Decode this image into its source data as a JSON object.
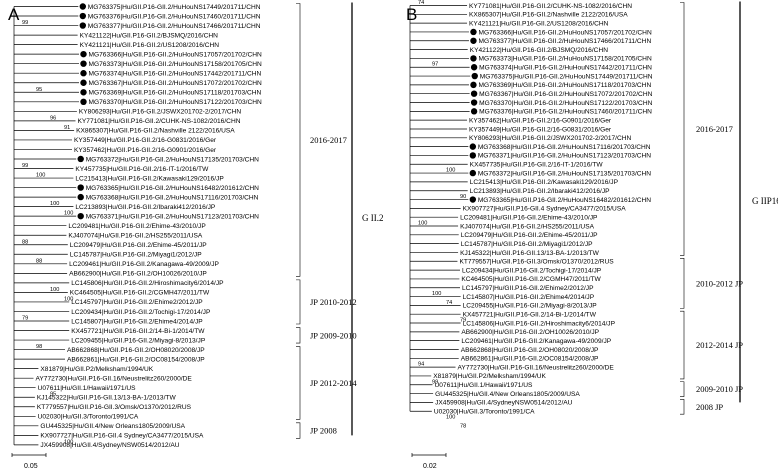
{
  "panels": [
    {
      "label": "A",
      "genotype_label": "G II.2",
      "scale_label": "0.05",
      "clades": [
        {
          "label": "2016-2017",
          "from": 0,
          "to": 28
        },
        {
          "label": "JP 2010-2012",
          "from": 29,
          "to": 33
        },
        {
          "label": "JP 2009-2010",
          "from": 34,
          "to": 35
        },
        {
          "label": "JP 2012-2014",
          "from": 36,
          "to": 43
        },
        {
          "label": "JP 2008",
          "from": 44,
          "to": 45
        }
      ],
      "leaves": [
        {
          "label": "MG763375|Hu/GII.P16-GII.2/HuHouNS17449/201711/CHN",
          "dot": true,
          "tip": 89
        },
        {
          "label": "MG763376|Hu/GII.P16-GII.2/HuHouNS17460/201711/CHN",
          "dot": true,
          "tip": 89
        },
        {
          "label": "MG763377|Hu/GII.P16-GII.2/HuHouNS17466/201711/CHN",
          "dot": true,
          "tip": 89
        },
        {
          "label": "KY421122|Hu/GII.P16-GII.2/BJSMQ/2016/CHN",
          "dot": false,
          "tip": 88
        },
        {
          "label": "KY421121|Hu/GII.P16-GII.2/US1208/2016/CHN",
          "dot": false,
          "tip": 88
        },
        {
          "label": "MG763366|Hu/GII.P16-GII.2/HuHouNS17057/201702/CHN",
          "dot": true,
          "tip": 90
        },
        {
          "label": "MG763373|Hu/GII.P16-GII.2/HuHouNS17158/201705/CHN",
          "dot": true,
          "tip": 90
        },
        {
          "label": "MG763374|Hu/GII.P16-GII.2/HuHouNS17442/201711/CHN",
          "dot": true,
          "tip": 90
        },
        {
          "label": "MG763367|Hu/GII.P16-GII.2/HuHouNS17072/201702/CHN",
          "dot": true,
          "tip": 90
        },
        {
          "label": "MG763369|Hu/GII.P16-GII.2/HuHouNS17118/201703/CHN",
          "dot": true,
          "tip": 90
        },
        {
          "label": "MG763370|Hu/GII.P16-GII.2/HuHouNS17122/201703/CHN",
          "dot": true,
          "tip": 90
        },
        {
          "label": "KY806293|Hu/GII.P16-GII.2/JSWX201702-2/2017/CHN",
          "dot": false,
          "tip": 87
        },
        {
          "label": "KY771081|Hu/GII.P16-GII.2/CUHK-NS-1082/2016/CHN",
          "dot": false,
          "tip": 85
        },
        {
          "label": "KX865307|Hu/GII.P16-GII.2/Nashville 2122/2016/USA",
          "dot": false,
          "tip": 83
        },
        {
          "label": "KY357449|Hu/GII.P16-GII.2/16-G0831/2016/Ger",
          "dot": false,
          "tip": 80
        },
        {
          "label": "KY357462|Hu/GII.P16-GII.2/16-G0901/2016/Ger",
          "dot": false,
          "tip": 80
        },
        {
          "label": "MG763372|Hu/GII.P16-GII.2/HuHouNS17135/201703/CHN",
          "dot": true,
          "tip": 86
        },
        {
          "label": "KY457735|Hu/GII.P16-GII.2/16-IT-1/2016/TW",
          "dot": false,
          "tip": 82
        },
        {
          "label": "LC215413|Hu/GII.P16-GII.2/Kawasaki129/2016/JP",
          "dot": false,
          "tip": 82
        },
        {
          "label": "MG763365|Hu/GII.P16-GII.2/HuHouNS16482/201612/CHN",
          "dot": true,
          "tip": 86
        },
        {
          "label": "MG763368|Hu/GII.P16-GII.2/HuHouNS17116/201703/CHN",
          "dot": true,
          "tip": 86
        },
        {
          "label": "LC213893|Hu/GII.P16-GII.2/Ibaraki412/2016/JP",
          "dot": false,
          "tip": 82
        },
        {
          "label": "MG763371|Hu/GII.P16-GII.2/HuHouNS17123/201703/CHN",
          "dot": true,
          "tip": 86
        },
        {
          "label": "LC209481|Hu/GII.P16-GII.2/Ehime-43/2010/JP",
          "dot": false,
          "tip": 72
        },
        {
          "label": "KJ407074|Hu/GII.P16-GII.2/HS255/2011/USA",
          "dot": false,
          "tip": 72
        },
        {
          "label": "LC209479|Hu/GII.P16-GII.2/Ehime-45/2011/JP",
          "dot": false,
          "tip": 74
        },
        {
          "label": "LC145787|Hu/GII.P16-GII.2/Miyagi1/2012/JP",
          "dot": false,
          "tip": 74
        },
        {
          "label": "LC209461|Hu/GII.P16-GII.2/Kanagawa-49/2009/JP",
          "dot": false,
          "tip": 73
        },
        {
          "label": "AB662900|Hu/GII.P16-GII.2/OH10026/2010/JP",
          "dot": false,
          "tip": 73
        },
        {
          "label": "LC145806|Hu/GII.P16-GII.2/Hiroshimacity6/2014/JP",
          "dot": false,
          "tip": 76
        },
        {
          "label": "KC464505|Hu/GII.P16-GII.2/CGMH47/2011/TW",
          "dot": false,
          "tip": 74
        },
        {
          "label": "LC145797|Hu/GII.P16-GII.2/Ehime2/2012/JP",
          "dot": false,
          "tip": 76
        },
        {
          "label": "LC209434|Hu/GII.P16-GII.2/Tochigi-17/2014/JP",
          "dot": false,
          "tip": 76
        },
        {
          "label": "LC145807|Hu/GII.P16-GII.2/Ehime4/2014/JP",
          "dot": false,
          "tip": 76
        },
        {
          "label": "KX457721|Hu/GII.P16-GII.2/14-Bi-1/2014/TW",
          "dot": false,
          "tip": 76
        },
        {
          "label": "LC209455|Hu/GII.P16-GII.2/Miyagi-8/2013/JP",
          "dot": false,
          "tip": 76
        },
        {
          "label": "AB662868|Hu/GII.P16-GII.2/OH08020/2008/JP",
          "dot": false,
          "tip": 70
        },
        {
          "label": "AB662861|Hu/GII.P16-GII.2/OC08154/2008/JP",
          "dot": false,
          "tip": 70
        },
        {
          "label": "X81879|Hu/GII.P2/Melksham/1994/UK",
          "dot": false,
          "tip": 32
        },
        {
          "label": "AY772730|Hu/GII.P16-GII.16/Neustrelitz260/2000/DE",
          "dot": false,
          "tip": 25
        },
        {
          "label": "U07611|Hu/GII.1/Hawaii/1971/US",
          "dot": false,
          "tip": 28
        },
        {
          "label": "KJ145322|Hu/GII.P16-GII.13/13-BA-1/2013/TW",
          "dot": false,
          "tip": 27
        },
        {
          "label": "KT779557|Hu/GII.P16-GII.3/Omsk/O1370/2012/RUS",
          "dot": false,
          "tip": 27
        },
        {
          "label": "U02030|Hu/GII.3/Toronto/1991/CA",
          "dot": false,
          "tip": 28
        },
        {
          "label": "GU445325|Hu/GII.4/New Orleans1805/2009/USA",
          "dot": false,
          "tip": 32
        },
        {
          "label": "KX907727|Hu/GII.P16-GII.4 Sydney/CA3477/2015/USA",
          "dot": false,
          "tip": 32
        },
        {
          "label": "JX459908|Hu/GII.4/Sydney/NSW0514/2012/AU",
          "dot": false,
          "tip": 32
        }
      ],
      "bootstraps": [
        {
          "value": "99",
          "row": 2
        },
        {
          "value": "95",
          "row": 9
        },
        {
          "value": "96",
          "row": 12
        },
        {
          "value": "91",
          "row": 13
        },
        {
          "value": "99",
          "row": 17
        },
        {
          "value": "100",
          "row": 18
        },
        {
          "value": "100",
          "row": 21
        },
        {
          "value": "100",
          "row": 22
        },
        {
          "value": "88",
          "row": 25
        },
        {
          "value": "88",
          "row": 27
        },
        {
          "value": "100",
          "row": 30
        },
        {
          "value": "100",
          "row": 31
        },
        {
          "value": "79",
          "row": 33
        },
        {
          "value": "98",
          "row": 36
        },
        {
          "value": "95",
          "row": 41
        },
        {
          "value": "100",
          "row": 46
        }
      ]
    },
    {
      "label": "B",
      "genotype_label": "G IIP16",
      "scale_label": "0.02",
      "clades": [
        {
          "label": "2016-2017",
          "from": 0,
          "to": 28
        },
        {
          "label": "2010-2012 JP",
          "from": 29,
          "to": 34
        },
        {
          "label": "2012-2014 JP",
          "from": 35,
          "to": 42
        },
        {
          "label": "2009-2010 JP",
          "from": 43,
          "to": 44
        },
        {
          "label": "2008 JP",
          "from": 45,
          "to": 46
        }
      ],
      "leaves": [
        {
          "label": "KY771081|Hu/GII.P16-GII.2/CUHK-NS-1082/2016/CHN",
          "dot": false,
          "tip": 86
        },
        {
          "label": "KX865307|Hu/GII.P16-GII.2/Nashville 2122/2016/USA",
          "dot": false,
          "tip": 86
        },
        {
          "label": "KY421121|Hu/GII.P16-GII.2/US1208/2016/CHN",
          "dot": false,
          "tip": 86
        },
        {
          "label": "MG763366|Hu/GII.P16-GII.2/HuHouNS17057/201702/CHN",
          "dot": true,
          "tip": 89
        },
        {
          "label": "MG763377|Hu/GII.P16-GII.2/HuHouNS17466/201711/CHN",
          "dot": true,
          "tip": 89
        },
        {
          "label": "KY421122|Hu/GII.P16-GII.2/BJSMQ/2016/CHN",
          "dot": false,
          "tip": 87
        },
        {
          "label": "MG763373|Hu/GII.P16-GII.2/HuHouNS17158/201705/CHN",
          "dot": true,
          "tip": 89
        },
        {
          "label": "MG763374|Hu/GII.P16-GII.2/HuHouNS17442/201711/CHN",
          "dot": true,
          "tip": 90
        },
        {
          "label": "MG763375|Hu/GII.P16-GII.2/HuHouNS17449/201711/CHN",
          "dot": true,
          "tip": 91
        },
        {
          "label": "MG763369|Hu/GII.P16-GII.2/HuHouNS17118/201703/CHN",
          "dot": true,
          "tip": 89
        },
        {
          "label": "MG763367|Hu/GII.P16-GII.2/HuHouNS17072/201702/CHN",
          "dot": true,
          "tip": 90
        },
        {
          "label": "MG763370|Hu/GII.P16-GII.2/HuHouNS17122/201703/CHN",
          "dot": true,
          "tip": 90
        },
        {
          "label": "MG763376|Hu/GII.P16-GII.2/HuHouNS17460/201711/CHN",
          "dot": true,
          "tip": 90
        },
        {
          "label": "KY357462|Hu/GII.P16-GII.2/16-G0901/2016/Ger",
          "dot": false,
          "tip": 86
        },
        {
          "label": "KY357449|Hu/GII.P16-GII.2/16-G0831/2016/Ger",
          "dot": false,
          "tip": 86
        },
        {
          "label": "KY806293|Hu/GII.P16-GII.2/JSWX201702-2/2017/CHN",
          "dot": false,
          "tip": 86
        },
        {
          "label": "MG763368|Hu/GII.P16-GII.2/HuHouNS17116/201703/CHN",
          "dot": true,
          "tip": 88
        },
        {
          "label": "MG763371|Hu/GII.P16-GII.2/HuHouNS17123/201703/CHN",
          "dot": true,
          "tip": 88
        },
        {
          "label": "KX457735|Hu/GII.P16-GII.2/16-IT-1/2016/TW",
          "dot": false,
          "tip": 87
        },
        {
          "label": "MG763372|Hu/GII.P16-GII.2/HuHouNS17135/201703/CHN",
          "dot": true,
          "tip": 88
        },
        {
          "label": "LC215413|Hu/GII.P16-GII.2/Kawasaki129/2016/JP",
          "dot": false,
          "tip": 87
        },
        {
          "label": "LC213893|Hu/GII.P16-GII.2/Ibaraki412/2016/JP",
          "dot": false,
          "tip": 87
        },
        {
          "label": "MG763365|Hu/GII.P16-GII.2/HuHouNS16482/201612/CHN",
          "dot": true,
          "tip": 88
        },
        {
          "label": "KX907727|Hu/GII.P16-GII.4 Sydney/CA3477/2015/USA",
          "dot": false,
          "tip": 76
        },
        {
          "label": "LC209481|Hu/GII.P16-GII.2/Ehime-43/2010/JP",
          "dot": false,
          "tip": 72
        },
        {
          "label": "KJ407074|Hu/GII.P16-GII.2/HS255/2011/USA",
          "dot": false,
          "tip": 72
        },
        {
          "label": "LC209479|Hu/GII.P16-GII.2/Ehime-45/2011/JP",
          "dot": false,
          "tip": 73
        },
        {
          "label": "LC145787|Hu/GII.P16-GII.2/Miyagi1/2012/JP",
          "dot": false,
          "tip": 73
        },
        {
          "label": "KJ145322|Hu/GII.P16-GII.13/13-BA-1/2013/TW",
          "dot": false,
          "tip": 72
        },
        {
          "label": "KT779557|Hu/GII.P16-GII.3/Omsk/O1370/2012/RUS",
          "dot": false,
          "tip": 71
        },
        {
          "label": "LC209434|Hu/GII.P16-GII.2/Tochigi-17/2014/JP",
          "dot": false,
          "tip": 75
        },
        {
          "label": "KC464505|Hu/GII.P16-GII.2/CGMH47/2011/TW",
          "dot": false,
          "tip": 74
        },
        {
          "label": "LC145797|Hu/GII.P16-GII.2/Ehime2/2012/JP",
          "dot": false,
          "tip": 75
        },
        {
          "label": "LC145807|Hu/GII.P16-GII.2/Ehime4/2014/JP",
          "dot": false,
          "tip": 76
        },
        {
          "label": "LC209455|Hu/GII.P16-GII.2/Miyagi-8/2013/JP",
          "dot": false,
          "tip": 76
        },
        {
          "label": "KX457721|Hu/GII.P16-GII.2/14-Bi-1/2014/TW",
          "dot": false,
          "tip": 76
        },
        {
          "label": "LC145806|Hu/GII.P16-GII.2/Hiroshimacity6/2014/JP",
          "dot": false,
          "tip": 76
        },
        {
          "label": "AB662900|Hu/GII.P16-GII.2/OH10026/2010/JP",
          "dot": false,
          "tip": 74
        },
        {
          "label": "LC209461|Hu/GII.P16-GII.2/Kanagawa-49/2009/JP",
          "dot": false,
          "tip": 74
        },
        {
          "label": "AB662868|Hu/GII.P16-GII.2/OH08020/2008/JP",
          "dot": false,
          "tip": 73
        },
        {
          "label": "AB662861|Hu/GII.P16-GII.2/OC08154/2008/JP",
          "dot": false,
          "tip": 73
        },
        {
          "label": "AY772730|Hu/GII.P16-GII.16/Neustrelitz260/2000/DE",
          "dot": false,
          "tip": 68
        },
        {
          "label": "X81879|Hu/GII.P2/Melksham/1994/UK",
          "dot": false,
          "tip": 30
        },
        {
          "label": "U07611|Hu/GII.1/Hawaii/1971/US",
          "dot": false,
          "tip": 32
        },
        {
          "label": "GU445325|Hu/GII.4/New Orleans1805/2009/USA",
          "dot": false,
          "tip": 33
        },
        {
          "label": "JX459908|Hu/GII.4/SydneyNSW0514/2012/AU",
          "dot": false,
          "tip": 33
        },
        {
          "label": "U02030|Hu/GII.3/Toronto/1991/CA",
          "dot": false,
          "tip": 31
        }
      ],
      "bootstraps": [
        {
          "value": "74",
          "row": 0
        },
        {
          "value": "97",
          "row": 7
        },
        {
          "value": "100",
          "row": 19
        },
        {
          "value": "90",
          "row": 22
        },
        {
          "value": "100",
          "row": 25
        },
        {
          "value": "100",
          "row": 33
        },
        {
          "value": "74",
          "row": 34
        },
        {
          "value": "79",
          "row": 36
        },
        {
          "value": "94",
          "row": 41
        },
        {
          "value": "99",
          "row": 43
        },
        {
          "value": "100",
          "row": 47
        },
        {
          "value": "78",
          "row": 48
        }
      ]
    }
  ]
}
